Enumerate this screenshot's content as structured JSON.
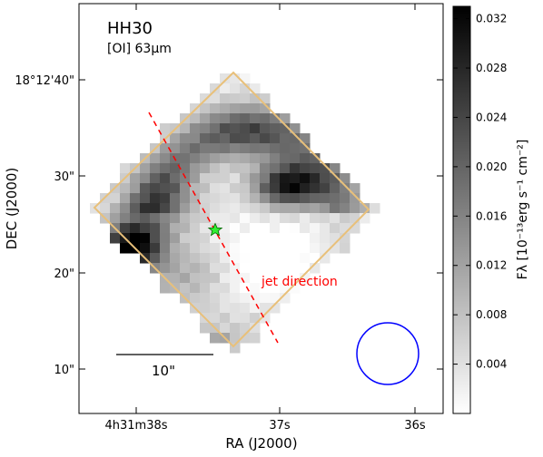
{
  "chart_data": {
    "type": "heatmap",
    "title": "HH30",
    "subtitle": "[OI] 63μm",
    "xlabel": "RA (J2000)",
    "ylabel": "DEC (J2000)",
    "x_ticks": [
      "4h31m38s",
      "37s",
      "36s"
    ],
    "y_ticks": [
      "18°12'40\"",
      "30\"",
      "20\"",
      "10\""
    ],
    "colorbar": {
      "label": "Fλ [10⁻¹³erg s⁻¹ cm⁻²]",
      "ticks": [
        "0.032",
        "0.028",
        "0.024",
        "0.020",
        "0.016",
        "0.012",
        "0.008",
        "0.004"
      ],
      "range": [
        0.0,
        0.033
      ],
      "colormap": "gray_r"
    },
    "annotations": {
      "jet_label": "jet direction",
      "scale_bar_label": "10\"",
      "beam": "circle",
      "source_marker": "green star"
    },
    "colors": {
      "jet": "#ff0000",
      "footprint": "#e8c07a",
      "beam": "#0000ff",
      "star": "#00ff00"
    }
  }
}
